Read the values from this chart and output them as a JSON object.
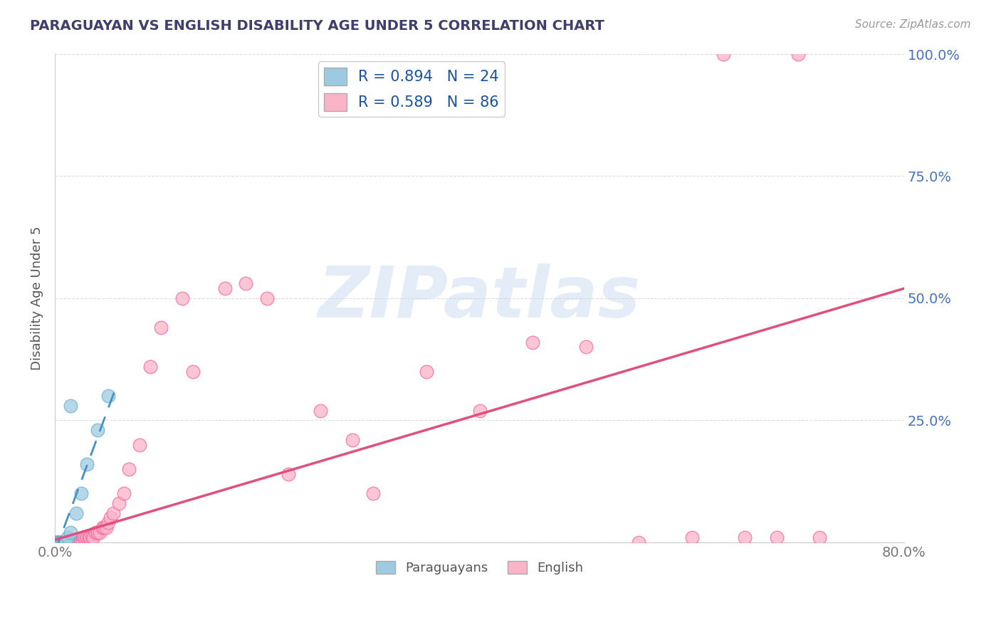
{
  "title": "PARAGUAYAN VS ENGLISH DISABILITY AGE UNDER 5 CORRELATION CHART",
  "source": "Source: ZipAtlas.com",
  "ylabel": "Disability Age Under 5",
  "xlim": [
    0.0,
    0.8
  ],
  "ylim": [
    0.0,
    1.0
  ],
  "xticks": [
    0.0,
    0.1,
    0.2,
    0.3,
    0.4,
    0.5,
    0.6,
    0.7,
    0.8
  ],
  "yticks": [
    0.0,
    0.25,
    0.5,
    0.75,
    1.0
  ],
  "xtick_labels": [
    "0.0%",
    "",
    "",
    "",
    "",
    "",
    "",
    "",
    "80.0%"
  ],
  "ytick_labels_right": [
    "",
    "25.0%",
    "50.0%",
    "75.0%",
    "100.0%"
  ],
  "paraguayan_color": "#9ecae1",
  "paraguayan_edge": "#6baed6",
  "english_color": "#fbb4c7",
  "english_edge": "#f768a1",
  "trend_par_color": "#4292c6",
  "trend_eng_color": "#e0507a",
  "paraguayan_R": 0.894,
  "paraguayan_N": 24,
  "english_R": 0.589,
  "english_N": 86,
  "watermark": "ZIPatlas",
  "title_color": "#3f3f6e",
  "source_color": "#999999",
  "ylabel_color": "#555555",
  "axis_label_color": "#777777",
  "right_tick_color": "#4472c4",
  "grid_color": "#dddddd",
  "paraguayan_x": [
    0.001,
    0.002,
    0.002,
    0.003,
    0.003,
    0.004,
    0.004,
    0.005,
    0.005,
    0.006,
    0.006,
    0.007,
    0.008,
    0.009,
    0.01,
    0.01,
    0.012,
    0.015,
    0.015,
    0.02,
    0.025,
    0.03,
    0.04,
    0.05
  ],
  "paraguayan_y": [
    0.0,
    0.0,
    0.0,
    0.0,
    0.0,
    0.0,
    0.0,
    0.0,
    0.0,
    0.0,
    0.0,
    0.0,
    0.0,
    0.0,
    0.0,
    0.0,
    0.01,
    0.02,
    0.28,
    0.06,
    0.1,
    0.16,
    0.23,
    0.3
  ],
  "english_x": [
    0.001,
    0.002,
    0.002,
    0.003,
    0.003,
    0.004,
    0.004,
    0.005,
    0.005,
    0.006,
    0.006,
    0.007,
    0.007,
    0.008,
    0.008,
    0.009,
    0.009,
    0.01,
    0.01,
    0.01,
    0.011,
    0.011,
    0.012,
    0.012,
    0.013,
    0.013,
    0.014,
    0.014,
    0.015,
    0.015,
    0.016,
    0.017,
    0.018,
    0.019,
    0.02,
    0.02,
    0.021,
    0.022,
    0.023,
    0.024,
    0.025,
    0.026,
    0.027,
    0.028,
    0.03,
    0.03,
    0.032,
    0.033,
    0.035,
    0.036,
    0.038,
    0.04,
    0.04,
    0.042,
    0.045,
    0.046,
    0.048,
    0.05,
    0.052,
    0.055,
    0.06,
    0.065,
    0.07,
    0.08,
    0.09,
    0.1,
    0.12,
    0.13,
    0.16,
    0.18,
    0.2,
    0.22,
    0.25,
    0.28,
    0.3,
    0.35,
    0.4,
    0.45,
    0.5,
    0.55,
    0.6,
    0.65,
    0.68,
    0.63,
    0.7,
    0.72
  ],
  "english_y": [
    0.0,
    0.0,
    0.0,
    0.0,
    0.0,
    0.0,
    0.0,
    0.0,
    0.0,
    0.0,
    0.0,
    0.0,
    0.0,
    0.0,
    0.0,
    0.0,
    0.0,
    0.0,
    0.0,
    0.0,
    0.0,
    0.0,
    0.0,
    0.0,
    0.0,
    0.0,
    0.0,
    0.0,
    0.0,
    0.0,
    0.0,
    0.0,
    0.0,
    0.0,
    0.0,
    0.0,
    0.0,
    0.0,
    0.0,
    0.0,
    0.0,
    0.0,
    0.01,
    0.01,
    0.01,
    0.01,
    0.01,
    0.01,
    0.01,
    0.01,
    0.02,
    0.02,
    0.02,
    0.02,
    0.03,
    0.03,
    0.03,
    0.04,
    0.05,
    0.06,
    0.08,
    0.1,
    0.15,
    0.2,
    0.36,
    0.44,
    0.5,
    0.35,
    0.52,
    0.53,
    0.5,
    0.14,
    0.27,
    0.21,
    0.1,
    0.35,
    0.27,
    0.41,
    0.4,
    0.0,
    0.01,
    0.01,
    0.01,
    1.0,
    1.0,
    0.01
  ],
  "par_trend_x0": 0.0,
  "par_trend_x1": 0.058,
  "par_trend_y0": -0.02,
  "par_trend_y1": 0.32,
  "eng_trend_x0": 0.0,
  "eng_trend_x1": 0.8,
  "eng_trend_y0": 0.005,
  "eng_trend_y1": 0.52
}
